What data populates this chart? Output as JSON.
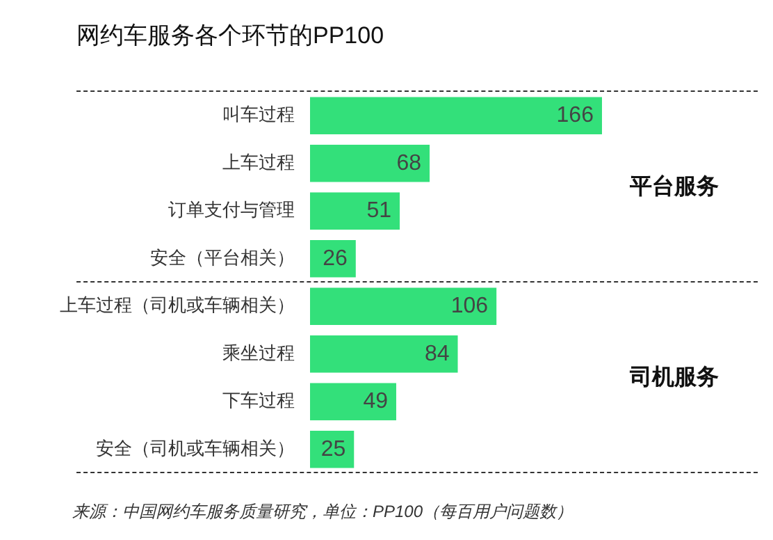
{
  "chart_data": {
    "type": "bar",
    "orientation": "horizontal",
    "title": "网约车服务各个环节的PP100",
    "categories": [
      "叫车过程",
      "上车过程",
      "订单支付与管理",
      "安全（平台相关）",
      "上车过程（司机或车辆相关）",
      "乘坐过程",
      "下车过程",
      "安全（司机或车辆相关）"
    ],
    "values": [
      166,
      68,
      51,
      26,
      106,
      84,
      49,
      25
    ],
    "color": "#33e07a",
    "data_labels": true,
    "legend": false,
    "annotations": [
      "平台服务",
      "司机服务",
      "来源：中国网约车服务质量研究，单位：PP100（每百用户问题数）"
    ]
  }
}
